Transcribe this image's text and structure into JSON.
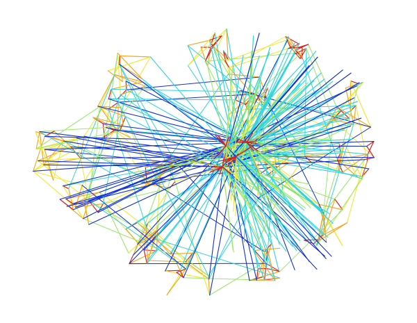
{
  "graph": {
    "type": "network-edge-plot",
    "background": "#ffffff",
    "edge_colors": {
      "short": "#d62020",
      "medium_short": "#f5a623",
      "medium": "#f2e836",
      "medium_long": "#9be86a",
      "long": "#2fd4e0",
      "longest": "#1030d8"
    },
    "hub_colors": [
      "#d62020",
      "#f5a623",
      "#1030d8"
    ]
  }
}
